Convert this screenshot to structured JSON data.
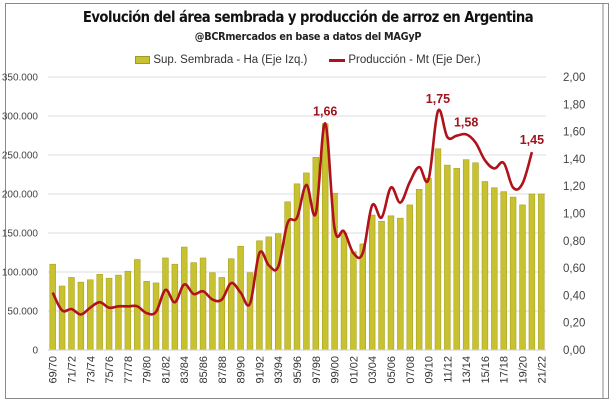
{
  "chart_data": {
    "type": "bar",
    "title": "Evolución del área sembrada y producción de arroz en Argentina",
    "subtitle": "@BCRmercados en base a datos del MAGyP",
    "categories": [
      "69/70",
      "70/71",
      "71/72",
      "72/73",
      "73/74",
      "74/75",
      "75/76",
      "76/77",
      "77/78",
      "78/79",
      "79/80",
      "80/81",
      "81/82",
      "82/83",
      "83/84",
      "84/85",
      "85/86",
      "86/87",
      "87/88",
      "88/89",
      "89/90",
      "90/91",
      "91/92",
      "92/93",
      "93/94",
      "94/95",
      "95/96",
      "96/97",
      "97/98",
      "98/99",
      "99/00",
      "00/01",
      "01/02",
      "02/03",
      "03/04",
      "04/05",
      "05/06",
      "06/07",
      "07/08",
      "08/09",
      "09/10",
      "10/11",
      "11/12",
      "12/13",
      "13/14",
      "14/15",
      "15/16",
      "16/17",
      "17/18",
      "18/19",
      "19/20",
      "20/21",
      "21/22"
    ],
    "x_tick_labels": [
      "69/70",
      "71/72",
      "73/74",
      "75/76",
      "77/78",
      "79/80",
      "81/82",
      "83/84",
      "85/86",
      "87/88",
      "89/90",
      "91/92",
      "93/94",
      "95/96",
      "97/98",
      "99/00",
      "01/02",
      "03/04",
      "05/06",
      "07/08",
      "09/10",
      "11/12",
      "13/14",
      "15/16",
      "17/18",
      "19/20",
      "21/22"
    ],
    "series": [
      {
        "name": "Sup. Sembrada - Ha (Eje Izq.)",
        "type": "bar",
        "axis": "left",
        "color": "#c8c230",
        "values": [
          110000,
          82000,
          93000,
          87000,
          90000,
          97000,
          92000,
          96000,
          101000,
          116000,
          88000,
          86000,
          118000,
          110000,
          132000,
          112000,
          118000,
          99000,
          93000,
          117000,
          133000,
          99000,
          140000,
          145000,
          149000,
          190000,
          213000,
          227000,
          247000,
          290000,
          201000,
          150000,
          126000,
          136000,
          173000,
          165000,
          172000,
          169000,
          186000,
          206000,
          220000,
          258000,
          237000,
          233000,
          244000,
          240000,
          216000,
          208000,
          203000,
          196000,
          186000,
          200000,
          200000
        ]
      },
      {
        "name": "Producción - Mt (Eje Der.)",
        "type": "line",
        "axis": "right",
        "color": "#b0121b",
        "values": [
          0.42,
          0.29,
          0.3,
          0.26,
          0.31,
          0.35,
          0.31,
          0.32,
          0.32,
          0.32,
          0.27,
          0.28,
          0.44,
          0.35,
          0.48,
          0.41,
          0.43,
          0.37,
          0.37,
          0.49,
          0.42,
          0.34,
          0.71,
          0.62,
          0.61,
          0.93,
          0.97,
          1.21,
          1.0,
          1.66,
          0.89,
          0.87,
          0.71,
          0.71,
          1.06,
          0.97,
          1.19,
          1.08,
          1.23,
          1.34,
          1.25,
          1.75,
          1.56,
          1.57,
          1.58,
          1.52,
          1.39,
          1.33,
          1.37,
          1.19,
          1.22,
          1.45,
          null
        ]
      }
    ],
    "annotations": [
      {
        "category": "98/99",
        "text": "1,66"
      },
      {
        "category": "10/11",
        "text": "1,75"
      },
      {
        "category": "13/14",
        "text": "1,58"
      },
      {
        "category": "20/21",
        "text": "1,45"
      }
    ],
    "y_left": {
      "min": 0,
      "max": 350000,
      "step": 50000,
      "tick_labels": [
        "0",
        "50.000",
        "100.000",
        "150.000",
        "200.000",
        "250.000",
        "300.000",
        "350.000"
      ]
    },
    "y_right": {
      "min": 0,
      "max": 2,
      "step": 0.2,
      "tick_labels": [
        "0,00",
        "0,20",
        "0,40",
        "0,60",
        "0,80",
        "1,00",
        "1,20",
        "1,40",
        "1,60",
        "1,80",
        "2,00"
      ]
    },
    "xlabel": "",
    "ylabel_left": "",
    "ylabel_right": "",
    "grid": true,
    "legend_position": "top-center"
  }
}
